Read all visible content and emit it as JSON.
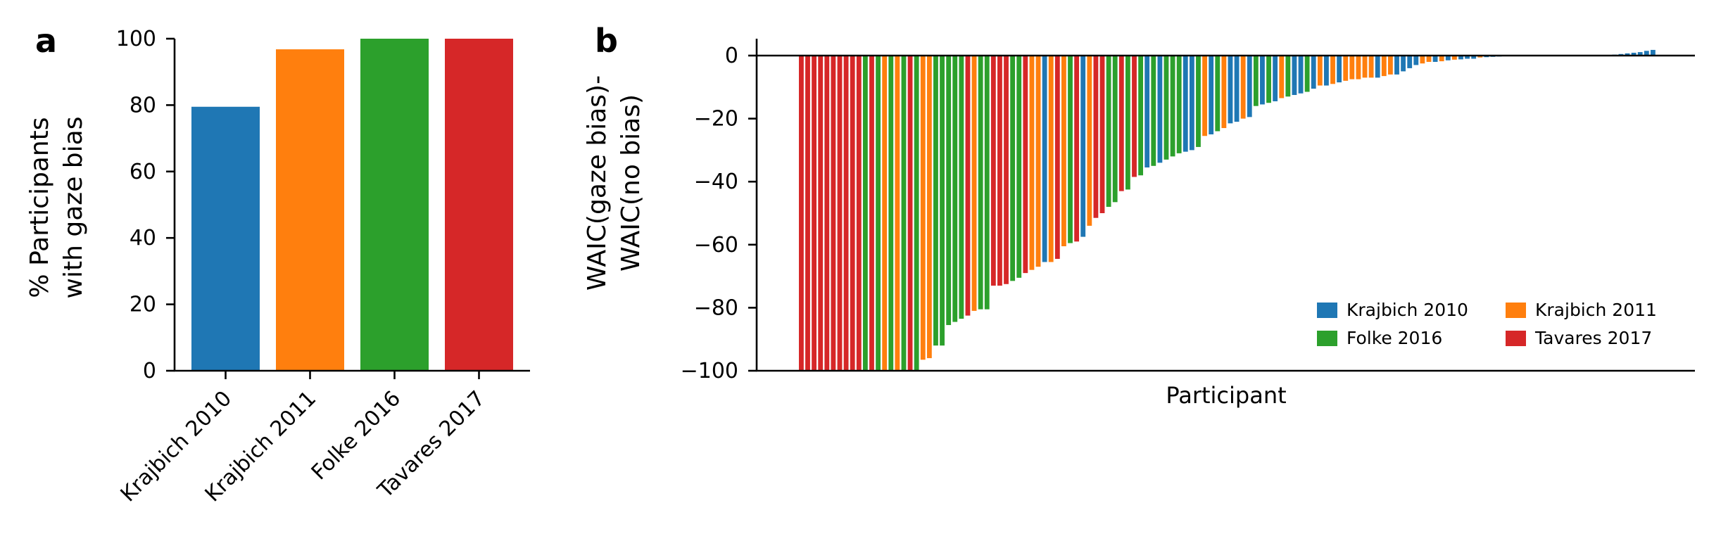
{
  "panels": {
    "a": {
      "letter": "a",
      "ylabel_line1": "% Participants",
      "ylabel_line2": "with gaze bias"
    },
    "b": {
      "letter": "b",
      "ylabel_line1": "WAIC(gaze bias)-",
      "ylabel_line2": "WAIC(no bias)",
      "xlabel": "Participant"
    }
  },
  "chart_data": [
    {
      "type": "bar",
      "title": "",
      "xlabel": "",
      "ylabel": "% Participants with gaze bias",
      "categories": [
        "Krajbich 2010",
        "Krajbich 2011",
        "Folke 2016",
        "Tavares 2017"
      ],
      "values": [
        79.5,
        96.8,
        100,
        100
      ],
      "colors": [
        "#1f77b4",
        "#ff7f0e",
        "#2ca02c",
        "#d62728"
      ],
      "ylim": [
        0,
        100
      ],
      "yticks": [
        0,
        20,
        40,
        60,
        80,
        100
      ],
      "grid": false,
      "x_tick_rotation": 45
    },
    {
      "type": "bar",
      "title": "",
      "xlabel": "Participant",
      "ylabel": "WAIC(gaze bias)- WAIC(no bias)",
      "ylim": [
        -100,
        5
      ],
      "yticks": [
        0,
        -20,
        -40,
        -60,
        -80,
        -100
      ],
      "grid": false,
      "reference_line_y": 0,
      "legend_position": "lower right",
      "legend": [
        {
          "name": "Krajbich 2010",
          "color": "#1f77b4"
        },
        {
          "name": "Krajbich 2011",
          "color": "#ff7f0e"
        },
        {
          "name": "Folke 2016",
          "color": "#2ca02c"
        },
        {
          "name": "Tavares 2017",
          "color": "#d62728"
        }
      ],
      "bars_sorted_ascending": [
        {
          "dataset": "Tavares 2017",
          "value": -100
        },
        {
          "dataset": "Tavares 2017",
          "value": -100
        },
        {
          "dataset": "Tavares 2017",
          "value": -100
        },
        {
          "dataset": "Tavares 2017",
          "value": -100
        },
        {
          "dataset": "Tavares 2017",
          "value": -100
        },
        {
          "dataset": "Tavares 2017",
          "value": -100
        },
        {
          "dataset": "Tavares 2017",
          "value": -100
        },
        {
          "dataset": "Tavares 2017",
          "value": -100
        },
        {
          "dataset": "Tavares 2017",
          "value": -100
        },
        {
          "dataset": "Tavares 2017",
          "value": -100
        },
        {
          "dataset": "Folke 2016",
          "value": -100
        },
        {
          "dataset": "Tavares 2017",
          "value": -100
        },
        {
          "dataset": "Folke 2016",
          "value": -100
        },
        {
          "dataset": "Krajbich 2011",
          "value": -100
        },
        {
          "dataset": "Folke 2016",
          "value": -100
        },
        {
          "dataset": "Krajbich 2011",
          "value": -100
        },
        {
          "dataset": "Folke 2016",
          "value": -100
        },
        {
          "dataset": "Tavares 2017",
          "value": -100
        },
        {
          "dataset": "Folke 2016",
          "value": -100
        },
        {
          "dataset": "Krajbich 2011",
          "value": -96.5
        },
        {
          "dataset": "Krajbich 2011",
          "value": -96
        },
        {
          "dataset": "Folke 2016",
          "value": -92
        },
        {
          "dataset": "Folke 2016",
          "value": -92
        },
        {
          "dataset": "Folke 2016",
          "value": -85.5
        },
        {
          "dataset": "Folke 2016",
          "value": -84.5
        },
        {
          "dataset": "Folke 2016",
          "value": -83.5
        },
        {
          "dataset": "Tavares 2017",
          "value": -82.5
        },
        {
          "dataset": "Krajbich 2011",
          "value": -81
        },
        {
          "dataset": "Folke 2016",
          "value": -80.5
        },
        {
          "dataset": "Folke 2016",
          "value": -80.5
        },
        {
          "dataset": "Tavares 2017",
          "value": -73
        },
        {
          "dataset": "Tavares 2017",
          "value": -73
        },
        {
          "dataset": "Tavares 2017",
          "value": -72.5
        },
        {
          "dataset": "Folke 2016",
          "value": -71.5
        },
        {
          "dataset": "Folke 2016",
          "value": -70.5
        },
        {
          "dataset": "Tavares 2017",
          "value": -69
        },
        {
          "dataset": "Krajbich 2011",
          "value": -68
        },
        {
          "dataset": "Krajbich 2011",
          "value": -67
        },
        {
          "dataset": "Krajbich 2010",
          "value": -65.5
        },
        {
          "dataset": "Krajbich 2011",
          "value": -65.5
        },
        {
          "dataset": "Tavares 2017",
          "value": -64.5
        },
        {
          "dataset": "Krajbich 2011",
          "value": -60.5
        },
        {
          "dataset": "Folke 2016",
          "value": -59.5
        },
        {
          "dataset": "Tavares 2017",
          "value": -59
        },
        {
          "dataset": "Krajbich 2010",
          "value": -57.5
        },
        {
          "dataset": "Krajbich 2011",
          "value": -54
        },
        {
          "dataset": "Tavares 2017",
          "value": -51.5
        },
        {
          "dataset": "Tavares 2017",
          "value": -50
        },
        {
          "dataset": "Folke 2016",
          "value": -48
        },
        {
          "dataset": "Folke 2016",
          "value": -46.5
        },
        {
          "dataset": "Tavares 2017",
          "value": -43
        },
        {
          "dataset": "Folke 2016",
          "value": -42.5
        },
        {
          "dataset": "Tavares 2017",
          "value": -38.5
        },
        {
          "dataset": "Folke 2016",
          "value": -38
        },
        {
          "dataset": "Krajbich 2010",
          "value": -35.5
        },
        {
          "dataset": "Folke 2016",
          "value": -35
        },
        {
          "dataset": "Krajbich 2010",
          "value": -34
        },
        {
          "dataset": "Folke 2016",
          "value": -33
        },
        {
          "dataset": "Folke 2016",
          "value": -32
        },
        {
          "dataset": "Folke 2016",
          "value": -31
        },
        {
          "dataset": "Krajbich 2010",
          "value": -30.5
        },
        {
          "dataset": "Krajbich 2010",
          "value": -30
        },
        {
          "dataset": "Folke 2016",
          "value": -29
        },
        {
          "dataset": "Krajbich 2011",
          "value": -25.5
        },
        {
          "dataset": "Krajbich 2010",
          "value": -25
        },
        {
          "dataset": "Folke 2016",
          "value": -24
        },
        {
          "dataset": "Krajbich 2011",
          "value": -23
        },
        {
          "dataset": "Krajbich 2010",
          "value": -21.5
        },
        {
          "dataset": "Krajbich 2010",
          "value": -21
        },
        {
          "dataset": "Krajbich 2011",
          "value": -20
        },
        {
          "dataset": "Krajbich 2010",
          "value": -19.5
        },
        {
          "dataset": "Folke 2016",
          "value": -16
        },
        {
          "dataset": "Krajbich 2010",
          "value": -15.5
        },
        {
          "dataset": "Folke 2016",
          "value": -15
        },
        {
          "dataset": "Krajbich 2010",
          "value": -14.5
        },
        {
          "dataset": "Krajbich 2011",
          "value": -13.5
        },
        {
          "dataset": "Folke 2016",
          "value": -13
        },
        {
          "dataset": "Krajbich 2010",
          "value": -12.5
        },
        {
          "dataset": "Krajbich 2010",
          "value": -12
        },
        {
          "dataset": "Folke 2016",
          "value": -11.5
        },
        {
          "dataset": "Krajbich 2010",
          "value": -10.5
        },
        {
          "dataset": "Krajbich 2011",
          "value": -9.5
        },
        {
          "dataset": "Krajbich 2010",
          "value": -9.5
        },
        {
          "dataset": "Krajbich 2011",
          "value": -9
        },
        {
          "dataset": "Krajbich 2010",
          "value": -8.5
        },
        {
          "dataset": "Krajbich 2011",
          "value": -8
        },
        {
          "dataset": "Krajbich 2011",
          "value": -7.5
        },
        {
          "dataset": "Krajbich 2011",
          "value": -7.5
        },
        {
          "dataset": "Krajbich 2011",
          "value": -7
        },
        {
          "dataset": "Krajbich 2011",
          "value": -7
        },
        {
          "dataset": "Krajbich 2010",
          "value": -7
        },
        {
          "dataset": "Krajbich 2011",
          "value": -6.5
        },
        {
          "dataset": "Krajbich 2011",
          "value": -6
        },
        {
          "dataset": "Krajbich 2010",
          "value": -6
        },
        {
          "dataset": "Krajbich 2010",
          "value": -5
        },
        {
          "dataset": "Krajbich 2010",
          "value": -4
        },
        {
          "dataset": "Krajbich 2010",
          "value": -3
        },
        {
          "dataset": "Krajbich 2011",
          "value": -2.5
        },
        {
          "dataset": "Krajbich 2011",
          "value": -2
        },
        {
          "dataset": "Krajbich 2010",
          "value": -2
        },
        {
          "dataset": "Krajbich 2011",
          "value": -1.8
        },
        {
          "dataset": "Krajbich 2010",
          "value": -1.5
        },
        {
          "dataset": "Krajbich 2011",
          "value": -1.3
        },
        {
          "dataset": "Krajbich 2010",
          "value": -1.2
        },
        {
          "dataset": "Krajbich 2010",
          "value": -1
        },
        {
          "dataset": "Krajbich 2010",
          "value": -1
        },
        {
          "dataset": "Krajbich 2011",
          "value": -0.6
        },
        {
          "dataset": "Krajbich 2010",
          "value": -0.5
        },
        {
          "dataset": "Krajbich 2010",
          "value": -0.4
        },
        {
          "dataset": "Krajbich 2010",
          "value": -0.3
        },
        {
          "dataset": "Krajbich 2010",
          "value": -0.2
        },
        {
          "dataset": "Krajbich 2010",
          "value": -0.1
        },
        {
          "dataset": "Krajbich 2010",
          "value": 0
        },
        {
          "dataset": "Krajbich 2010",
          "value": 0
        },
        {
          "dataset": "Krajbich 2010",
          "value": 0
        },
        {
          "dataset": "Krajbich 2010",
          "value": 0
        },
        {
          "dataset": "Krajbich 2010",
          "value": 0
        },
        {
          "dataset": "Krajbich 2010",
          "value": 0
        },
        {
          "dataset": "Krajbich 2010",
          "value": 0
        },
        {
          "dataset": "Krajbich 2010",
          "value": 0
        },
        {
          "dataset": "Krajbich 2010",
          "value": 0
        },
        {
          "dataset": "Krajbich 2010",
          "value": 0
        },
        {
          "dataset": "Krajbich 2010",
          "value": 0
        },
        {
          "dataset": "Krajbich 2010",
          "value": 0
        },
        {
          "dataset": "Krajbich 2010",
          "value": 0
        },
        {
          "dataset": "Krajbich 2010",
          "value": 0
        },
        {
          "dataset": "Krajbich 2010",
          "value": 0
        },
        {
          "dataset": "Krajbich 2010",
          "value": 0.3
        },
        {
          "dataset": "Krajbich 2010",
          "value": 0.5
        },
        {
          "dataset": "Krajbich 2010",
          "value": 0.7
        },
        {
          "dataset": "Krajbich 2010",
          "value": 0.9
        },
        {
          "dataset": "Krajbich 2010",
          "value": 1.1
        },
        {
          "dataset": "Krajbich 2010",
          "value": 1.5
        },
        {
          "dataset": "Krajbich 2010",
          "value": 1.8
        }
      ]
    }
  ]
}
